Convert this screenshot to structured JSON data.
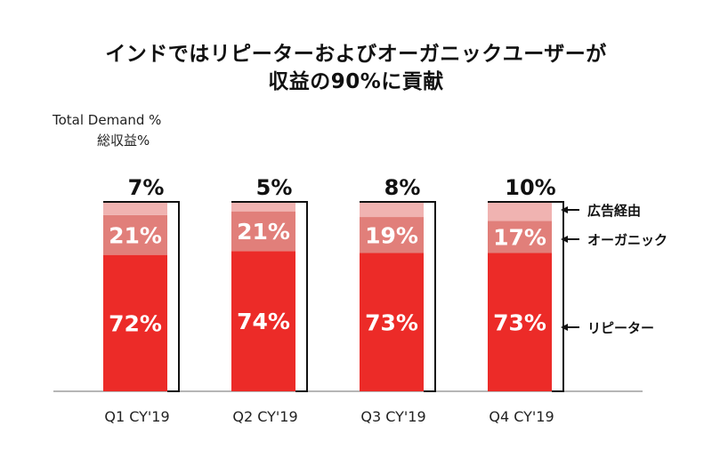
{
  "title_line1": "インドではリピーターおよびオーガニックユーザーが",
  "title_line2": "収益の90%に貢献",
  "ylabel_line1": "Total Demand %",
  "ylabel_line2": "総収益%",
  "colors": {
    "repeat": "#ec2b28",
    "organic": "#e17f7a",
    "ads": "#f0b3b1",
    "label": "#ffffff",
    "text": "#111111"
  },
  "chart_data": {
    "type": "bar",
    "stacked": true,
    "categories": [
      "Q1 CY'19",
      "Q2 CY'19",
      "Q3 CY'19",
      "Q4 CY'19"
    ],
    "series": [
      {
        "name": "リピーター",
        "values": [
          72,
          74,
          73,
          73
        ]
      },
      {
        "name": "オーガニック",
        "values": [
          21,
          21,
          19,
          17
        ]
      },
      {
        "name": "広告経由",
        "values": [
          7,
          5,
          8,
          10
        ]
      }
    ],
    "top_labels": [
      "7%",
      "5%",
      "8%",
      "10%"
    ],
    "data_labels": {
      "リピーター": [
        "72%",
        "74%",
        "73%",
        "73%"
      ],
      "オーガニック": [
        "21%",
        "21%",
        "19%",
        "17%"
      ]
    },
    "legend": {
      "placement": "right",
      "entries": [
        "広告経由",
        "オーガニック",
        "リピーター"
      ]
    },
    "grid": false
  }
}
